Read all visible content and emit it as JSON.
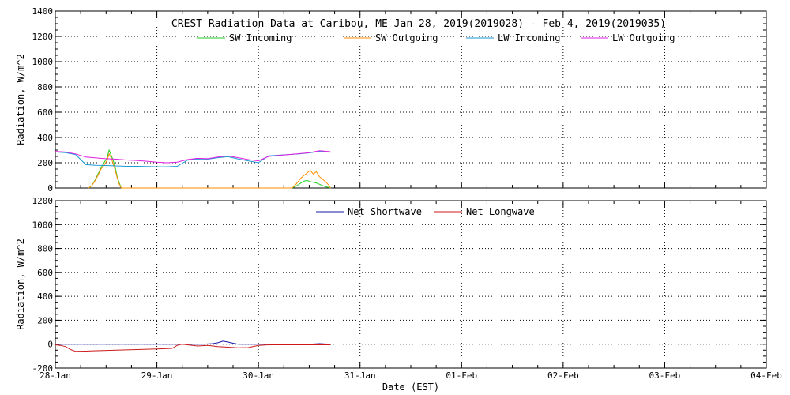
{
  "chart_data": [
    {
      "type": "line",
      "title": "CREST Radiation Data at Caribou, ME   Jan 28, 2019(2019028) - Feb  4, 2019(2019035)",
      "ylabel": "Radiation, W/m^2",
      "xlabel": "",
      "x_ticks": [
        "28-Jan",
        "29-Jan",
        "30-Jan",
        "31-Jan",
        "01-Feb",
        "02-Feb",
        "03-Feb",
        "04-Feb"
      ],
      "xlim": [
        0,
        7
      ],
      "ylim": [
        0,
        1400
      ],
      "y_ticks": [
        0,
        200,
        400,
        600,
        800,
        1000,
        1200,
        1400
      ],
      "grid": true,
      "legend_position": "top-center",
      "series": [
        {
          "name": "SW Incoming",
          "color": "#22cc22",
          "x": [
            0.33,
            0.36,
            0.39,
            0.42,
            0.45,
            0.48,
            0.51,
            0.53,
            0.55,
            0.57,
            0.59,
            0.61,
            0.63,
            0.65,
            0.67,
            0.69,
            0.71,
            2.33,
            2.36,
            2.39,
            2.42,
            2.45,
            2.48,
            2.51,
            2.54,
            2.57,
            2.6,
            2.63,
            2.66,
            2.69,
            2.71
          ],
          "y": [
            0,
            20,
            60,
            110,
            160,
            200,
            240,
            300,
            260,
            220,
            160,
            90,
            40,
            0,
            0,
            0,
            0,
            0,
            10,
            25,
            40,
            55,
            60,
            50,
            45,
            40,
            30,
            20,
            10,
            5,
            0
          ]
        },
        {
          "name": "SW Outgoing",
          "color": "#ff8c00",
          "x": [
            0.33,
            0.36,
            0.39,
            0.42,
            0.45,
            0.48,
            0.51,
            0.53,
            0.55,
            0.57,
            0.59,
            0.61,
            0.63,
            0.65,
            2.33,
            2.36,
            2.39,
            2.42,
            2.45,
            2.48,
            2.51,
            2.54,
            2.57,
            2.6,
            2.63,
            2.66,
            2.69,
            2.71
          ],
          "y": [
            0,
            20,
            55,
            100,
            150,
            180,
            220,
            270,
            240,
            190,
            140,
            80,
            30,
            0,
            0,
            20,
            50,
            80,
            100,
            120,
            140,
            110,
            130,
            90,
            70,
            50,
            25,
            0
          ]
        },
        {
          "name": "LW Incoming",
          "color": "#1a9ad6",
          "x": [
            0,
            0.1,
            0.2,
            0.3,
            0.4,
            0.5,
            0.6,
            0.7,
            0.8,
            0.9,
            1.0,
            1.1,
            1.2,
            1.3,
            1.4,
            1.5,
            1.6,
            1.7,
            1.8,
            1.9,
            2.0,
            2.1,
            2.2,
            2.3,
            2.4,
            2.5,
            2.6,
            2.7,
            2.71
          ],
          "y": [
            285,
            280,
            265,
            185,
            180,
            178,
            175,
            172,
            172,
            170,
            168,
            168,
            172,
            220,
            230,
            228,
            240,
            248,
            230,
            215,
            200,
            255,
            260,
            265,
            270,
            278,
            290,
            285,
            282
          ]
        },
        {
          "name": "LW Outgoing",
          "color": "#e020e0",
          "x": [
            0,
            0.1,
            0.2,
            0.3,
            0.4,
            0.5,
            0.6,
            0.7,
            0.8,
            0.9,
            1.0,
            1.1,
            1.2,
            1.3,
            1.4,
            1.5,
            1.6,
            1.7,
            1.8,
            1.9,
            2.0,
            2.1,
            2.2,
            2.3,
            2.4,
            2.5,
            2.6,
            2.7,
            2.71
          ],
          "y": [
            290,
            285,
            270,
            245,
            238,
            232,
            228,
            222,
            218,
            212,
            205,
            200,
            205,
            225,
            235,
            232,
            245,
            255,
            240,
            225,
            215,
            250,
            258,
            265,
            272,
            280,
            295,
            288,
            285
          ]
        }
      ]
    },
    {
      "type": "line",
      "title": "",
      "xlabel": "Date (EST)",
      "ylabel": "Radiation, W/m^2",
      "x_ticks": [
        "28-Jan",
        "29-Jan",
        "30-Jan",
        "31-Jan",
        "01-Feb",
        "02-Feb",
        "03-Feb",
        "04-Feb"
      ],
      "xlim": [
        0,
        7
      ],
      "ylim": [
        -200,
        1200
      ],
      "y_ticks": [
        -200,
        0,
        200,
        400,
        600,
        800,
        1000,
        1200
      ],
      "grid": true,
      "legend_position": "top-center",
      "series": [
        {
          "name": "Net Shortwave",
          "color": "#1a1aa8",
          "x": [
            0,
            0.3,
            0.6,
            0.9,
            1.2,
            1.35,
            1.45,
            1.55,
            1.6,
            1.65,
            1.7,
            1.75,
            1.8,
            1.9,
            2.0,
            2.1,
            2.3,
            2.5,
            2.6,
            2.71
          ],
          "y": [
            0,
            0,
            0,
            0,
            0,
            0,
            0,
            5,
            12,
            25,
            18,
            8,
            0,
            0,
            0,
            0,
            0,
            0,
            5,
            0
          ]
        },
        {
          "name": "Net Longwave",
          "color": "#cc1a1a",
          "x": [
            0,
            0.05,
            0.1,
            0.15,
            0.2,
            0.3,
            0.4,
            0.6,
            0.8,
            1.0,
            1.15,
            1.2,
            1.25,
            1.3,
            1.4,
            1.5,
            1.6,
            1.7,
            1.8,
            1.9,
            2.0,
            2.1,
            2.3,
            2.5,
            2.7,
            2.71
          ],
          "y": [
            -5,
            -10,
            -20,
            -45,
            -60,
            -58,
            -55,
            -50,
            -45,
            -40,
            -35,
            -10,
            0,
            -5,
            -15,
            -10,
            -20,
            -25,
            -30,
            -28,
            -10,
            -5,
            -5,
            -5,
            -5,
            -5
          ]
        }
      ]
    }
  ]
}
